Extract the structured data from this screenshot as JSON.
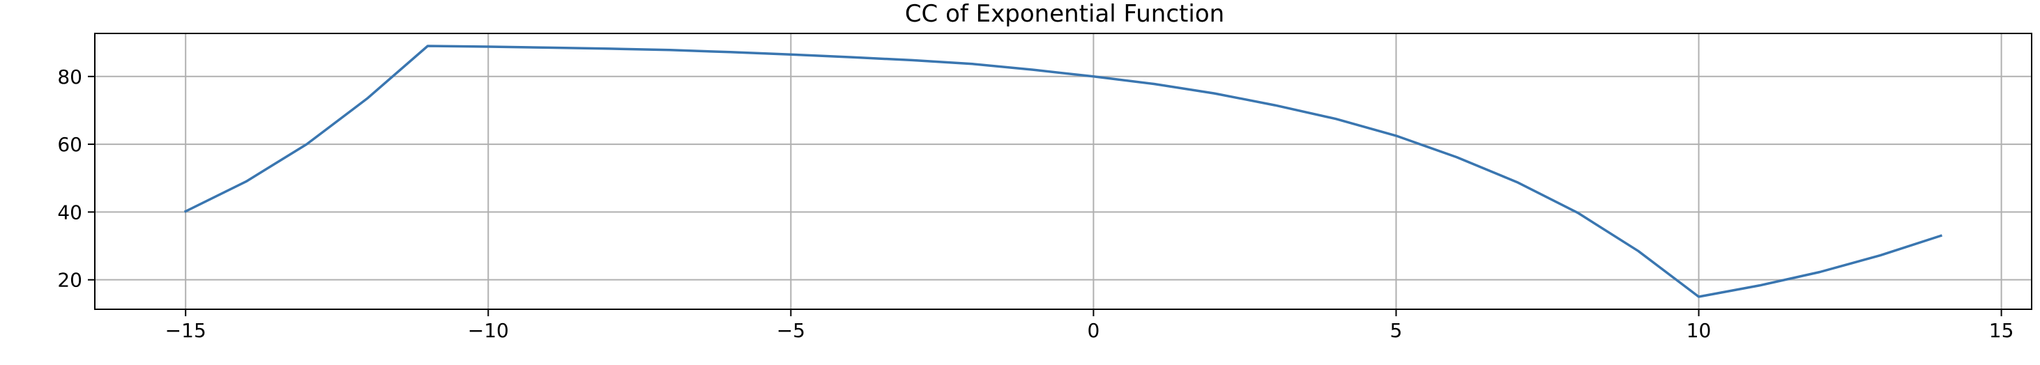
{
  "chart_data": {
    "type": "line",
    "title": "CC of Exponential Function",
    "xlabel": "",
    "ylabel": "",
    "xlim": [
      -16.5,
      15.5
    ],
    "ylim": [
      11.3,
      92.7
    ],
    "xticks": [
      -15,
      -10,
      -5,
      0,
      5,
      10,
      15
    ],
    "xtick_labels": [
      "−15",
      "−10",
      "−5",
      "0",
      "5",
      "10",
      "15"
    ],
    "yticks": [
      20,
      40,
      60,
      80
    ],
    "ytick_labels": [
      "20",
      "40",
      "60",
      "80"
    ],
    "grid": true,
    "series": [
      {
        "color": "#3a76b0",
        "x": [
          -15,
          -14,
          -13,
          -12,
          -11,
          -10,
          -9,
          -8,
          -7,
          -6,
          -5,
          -4,
          -3,
          -2,
          -1,
          0,
          1,
          2,
          3,
          4,
          5,
          6,
          7,
          8,
          9,
          10,
          11,
          12,
          13,
          14
        ],
        "y": [
          40.2,
          49.0,
          60.0,
          73.5,
          89.0,
          88.8,
          88.5,
          88.2,
          87.8,
          87.2,
          86.5,
          85.7,
          84.8,
          83.7,
          82.0,
          80.0,
          77.8,
          75.0,
          71.5,
          67.5,
          62.5,
          56.2,
          48.8,
          39.8,
          28.5,
          15.0,
          18.3,
          22.3,
          27.2,
          33.0
        ]
      }
    ]
  }
}
